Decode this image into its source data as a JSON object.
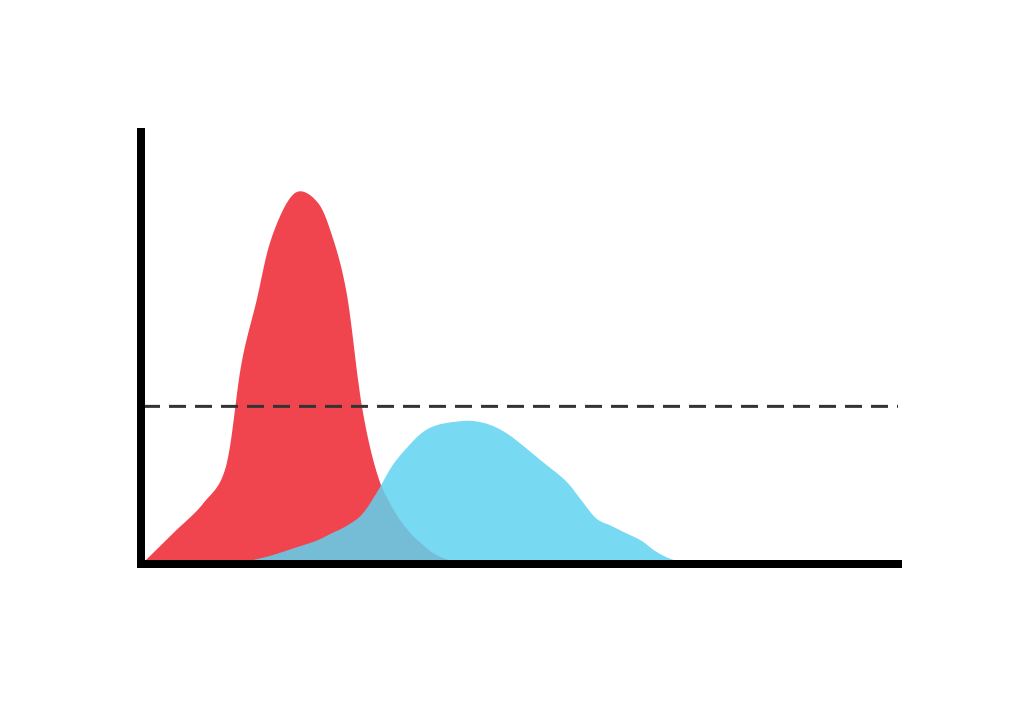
{
  "chart_data": {
    "type": "area",
    "title": "",
    "xlabel": "",
    "ylabel": "",
    "grid": false,
    "legend": "none",
    "xlim": [
      0,
      100
    ],
    "ylim": [
      0,
      100
    ],
    "series": [
      {
        "color": "#f0444e",
        "x": [
          0,
          4,
          8,
          11,
          13,
          15,
          17,
          20,
          23,
          25,
          27,
          29,
          31,
          33,
          35,
          37,
          39,
          42,
          44,
          46,
          48,
          50,
          53,
          56,
          58,
          60,
          62,
          64,
          66,
          68,
          70,
          72,
          74,
          76,
          78,
          80,
          82,
          84,
          86,
          88,
          90,
          92,
          94,
          96,
          98,
          100
        ],
        "values": [
          0,
          8,
          16,
          26,
          53,
          70,
          87,
          99,
          97,
          88,
          72,
          42,
          24,
          15,
          9,
          5,
          2,
          0,
          0,
          0,
          0,
          0,
          0,
          0,
          0,
          0,
          0,
          0,
          0,
          0,
          0,
          0,
          0,
          0,
          0,
          0,
          0,
          0,
          0,
          0,
          0,
          0,
          0,
          0,
          0,
          0
        ]
      },
      {
        "color": "#5fd2f0",
        "x": [
          0,
          4,
          8,
          11,
          13,
          15,
          17,
          20,
          23,
          25,
          27,
          29,
          31,
          33,
          35,
          37,
          39,
          42,
          44,
          46,
          48,
          50,
          53,
          56,
          58,
          60,
          62,
          64,
          66,
          68,
          70,
          72,
          74,
          76,
          78,
          80,
          82,
          84,
          86,
          88,
          90,
          92,
          94,
          96,
          98,
          100
        ],
        "values": [
          0,
          0,
          0,
          0,
          0,
          1,
          2,
          4,
          6,
          8,
          10,
          13,
          19,
          26,
          31,
          35,
          37,
          38,
          38,
          37,
          35,
          32,
          27,
          22,
          17,
          12,
          10,
          8,
          6,
          3,
          1,
          0,
          0,
          0,
          0,
          0,
          0,
          0,
          0,
          0,
          0,
          0,
          0,
          0,
          0,
          0
        ]
      }
    ],
    "reference_line": {
      "y": 42,
      "style": "dashed",
      "color": "#333333"
    },
    "colors": {
      "axis": "#000000",
      "background": "#ffffff"
    }
  }
}
